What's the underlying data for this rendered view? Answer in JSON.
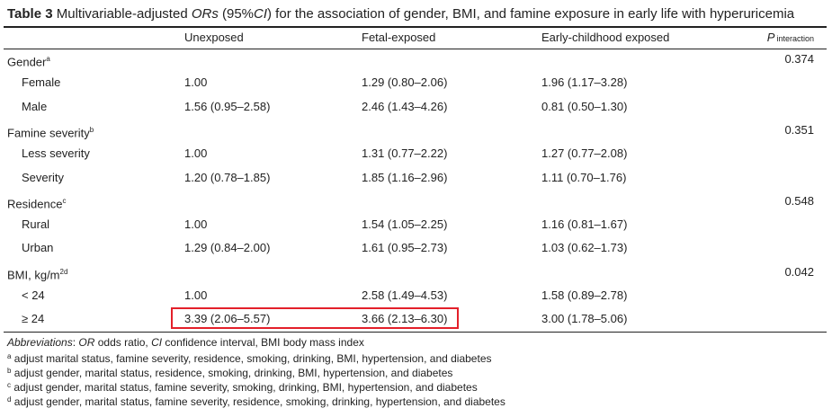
{
  "title": {
    "label": "Table 3",
    "pre": "Multivariable-adjusted ",
    "or": "ORs",
    "mid": " (95%",
    "ci": "CI",
    "post": ") for the association of gender, BMI, and famine exposure in early life with hyperuricemia"
  },
  "headers": {
    "unexposed": "Unexposed",
    "fetal": "Fetal-exposed",
    "early": "Early-childhood exposed",
    "p": "P",
    "p_sub": "interaction"
  },
  "rows": [
    {
      "label": "Gender",
      "sup": "a",
      "indent": false,
      "unexposed": "",
      "fetal": "",
      "early": "",
      "p": "0.374"
    },
    {
      "label": "Female",
      "sup": "",
      "indent": true,
      "unexposed": "1.00",
      "fetal": "1.29 (0.80–2.06)",
      "early": "1.96 (1.17–3.28)",
      "p": ""
    },
    {
      "label": "Male",
      "sup": "",
      "indent": true,
      "unexposed": "1.56 (0.95–2.58)",
      "fetal": "2.46 (1.43–4.26)",
      "early": "0.81 (0.50–1.30)",
      "p": ""
    },
    {
      "label": "Famine severity",
      "sup": "b",
      "indent": false,
      "unexposed": "",
      "fetal": "",
      "early": "",
      "p": "0.351"
    },
    {
      "label": "Less severity",
      "sup": "",
      "indent": true,
      "unexposed": "1.00",
      "fetal": "1.31 (0.77–2.22)",
      "early": "1.27 (0.77–2.08)",
      "p": ""
    },
    {
      "label": "Severity",
      "sup": "",
      "indent": true,
      "unexposed": "1.20 (0.78–1.85)",
      "fetal": "1.85 (1.16–2.96)",
      "early": "1.11 (0.70–1.76)",
      "p": ""
    },
    {
      "label": "Residence",
      "sup": "c",
      "indent": false,
      "unexposed": "",
      "fetal": "",
      "early": "",
      "p": "0.548"
    },
    {
      "label": "Rural",
      "sup": "",
      "indent": true,
      "unexposed": "1.00",
      "fetal": "1.54 (1.05–2.25)",
      "early": "1.16 (0.81–1.67)",
      "p": ""
    },
    {
      "label": "Urban",
      "sup": "",
      "indent": true,
      "unexposed": "1.29 (0.84–2.00)",
      "fetal": "1.61 (0.95–2.73)",
      "early": "1.03 (0.62–1.73)",
      "p": ""
    },
    {
      "label": "BMI, kg/m",
      "sup": "2d",
      "indent": false,
      "unexposed": "",
      "fetal": "",
      "early": "",
      "p": "0.042"
    },
    {
      "label": "< 24",
      "sup": "",
      "indent": true,
      "unexposed": "1.00",
      "fetal": "2.58 (1.49–4.53)",
      "early": "1.58 (0.89–2.78)",
      "p": ""
    },
    {
      "label": "≥ 24",
      "sup": "",
      "indent": true,
      "unexposed": "3.39 (2.06–5.57)",
      "fetal": "3.66 (2.13–6.30)",
      "early": "3.00 (1.78–5.06)",
      "p": ""
    }
  ],
  "highlight_color": "#e3202a",
  "footnotes": {
    "abbr_label": "Abbreviations",
    "abbr_or": "OR",
    "abbr_or_text": " odds ratio, ",
    "abbr_ci": "CI",
    "abbr_ci_text": " confidence interval, BMI body mass index",
    "notes": [
      {
        "mark": "a",
        "text": " adjust marital status, famine severity, residence, smoking, drinking, BMI, hypertension, and diabetes"
      },
      {
        "mark": "b",
        "text": " adjust gender, marital status, residence, smoking, drinking, BMI, hypertension, and diabetes"
      },
      {
        "mark": "c",
        "text": " adjust gender, marital status, famine severity, smoking, drinking, BMI, hypertension, and diabetes"
      },
      {
        "mark": "d",
        "text": " adjust gender, marital status, famine severity, residence, smoking, drinking, hypertension, and diabetes"
      }
    ]
  }
}
